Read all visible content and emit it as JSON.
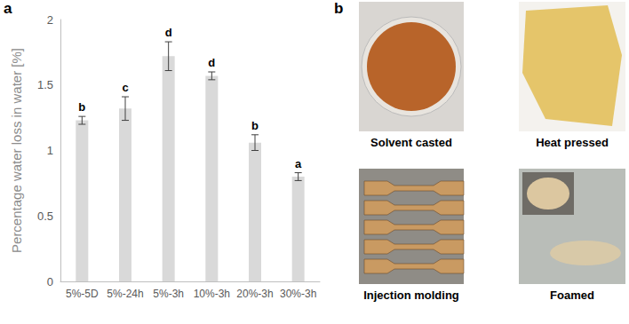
{
  "chart_data": {
    "type": "bar",
    "categories": [
      "5%-5D",
      "5%-24h",
      "5%-3h",
      "10%-3h",
      "20%-3h",
      "30%-3h"
    ],
    "values": [
      1.23,
      1.32,
      1.72,
      1.57,
      1.06,
      0.8
    ],
    "errors": [
      0.03,
      0.09,
      0.11,
      0.03,
      0.06,
      0.03
    ],
    "annotations": [
      "b",
      "c",
      "d",
      "d",
      "b",
      "a"
    ],
    "y_label": "Percentage water loss in water [%]",
    "color": "#d9d9d9",
    "ylim": [
      0,
      2
    ],
    "yticks": [
      0,
      0.5,
      1,
      1.5,
      2
    ],
    "grid": false
  },
  "figure": {
    "panel_labels": [
      "a",
      "b"
    ],
    "photos": [
      "Solvent casted",
      "Heat pressed",
      "Injection molding",
      "Foamed"
    ]
  }
}
